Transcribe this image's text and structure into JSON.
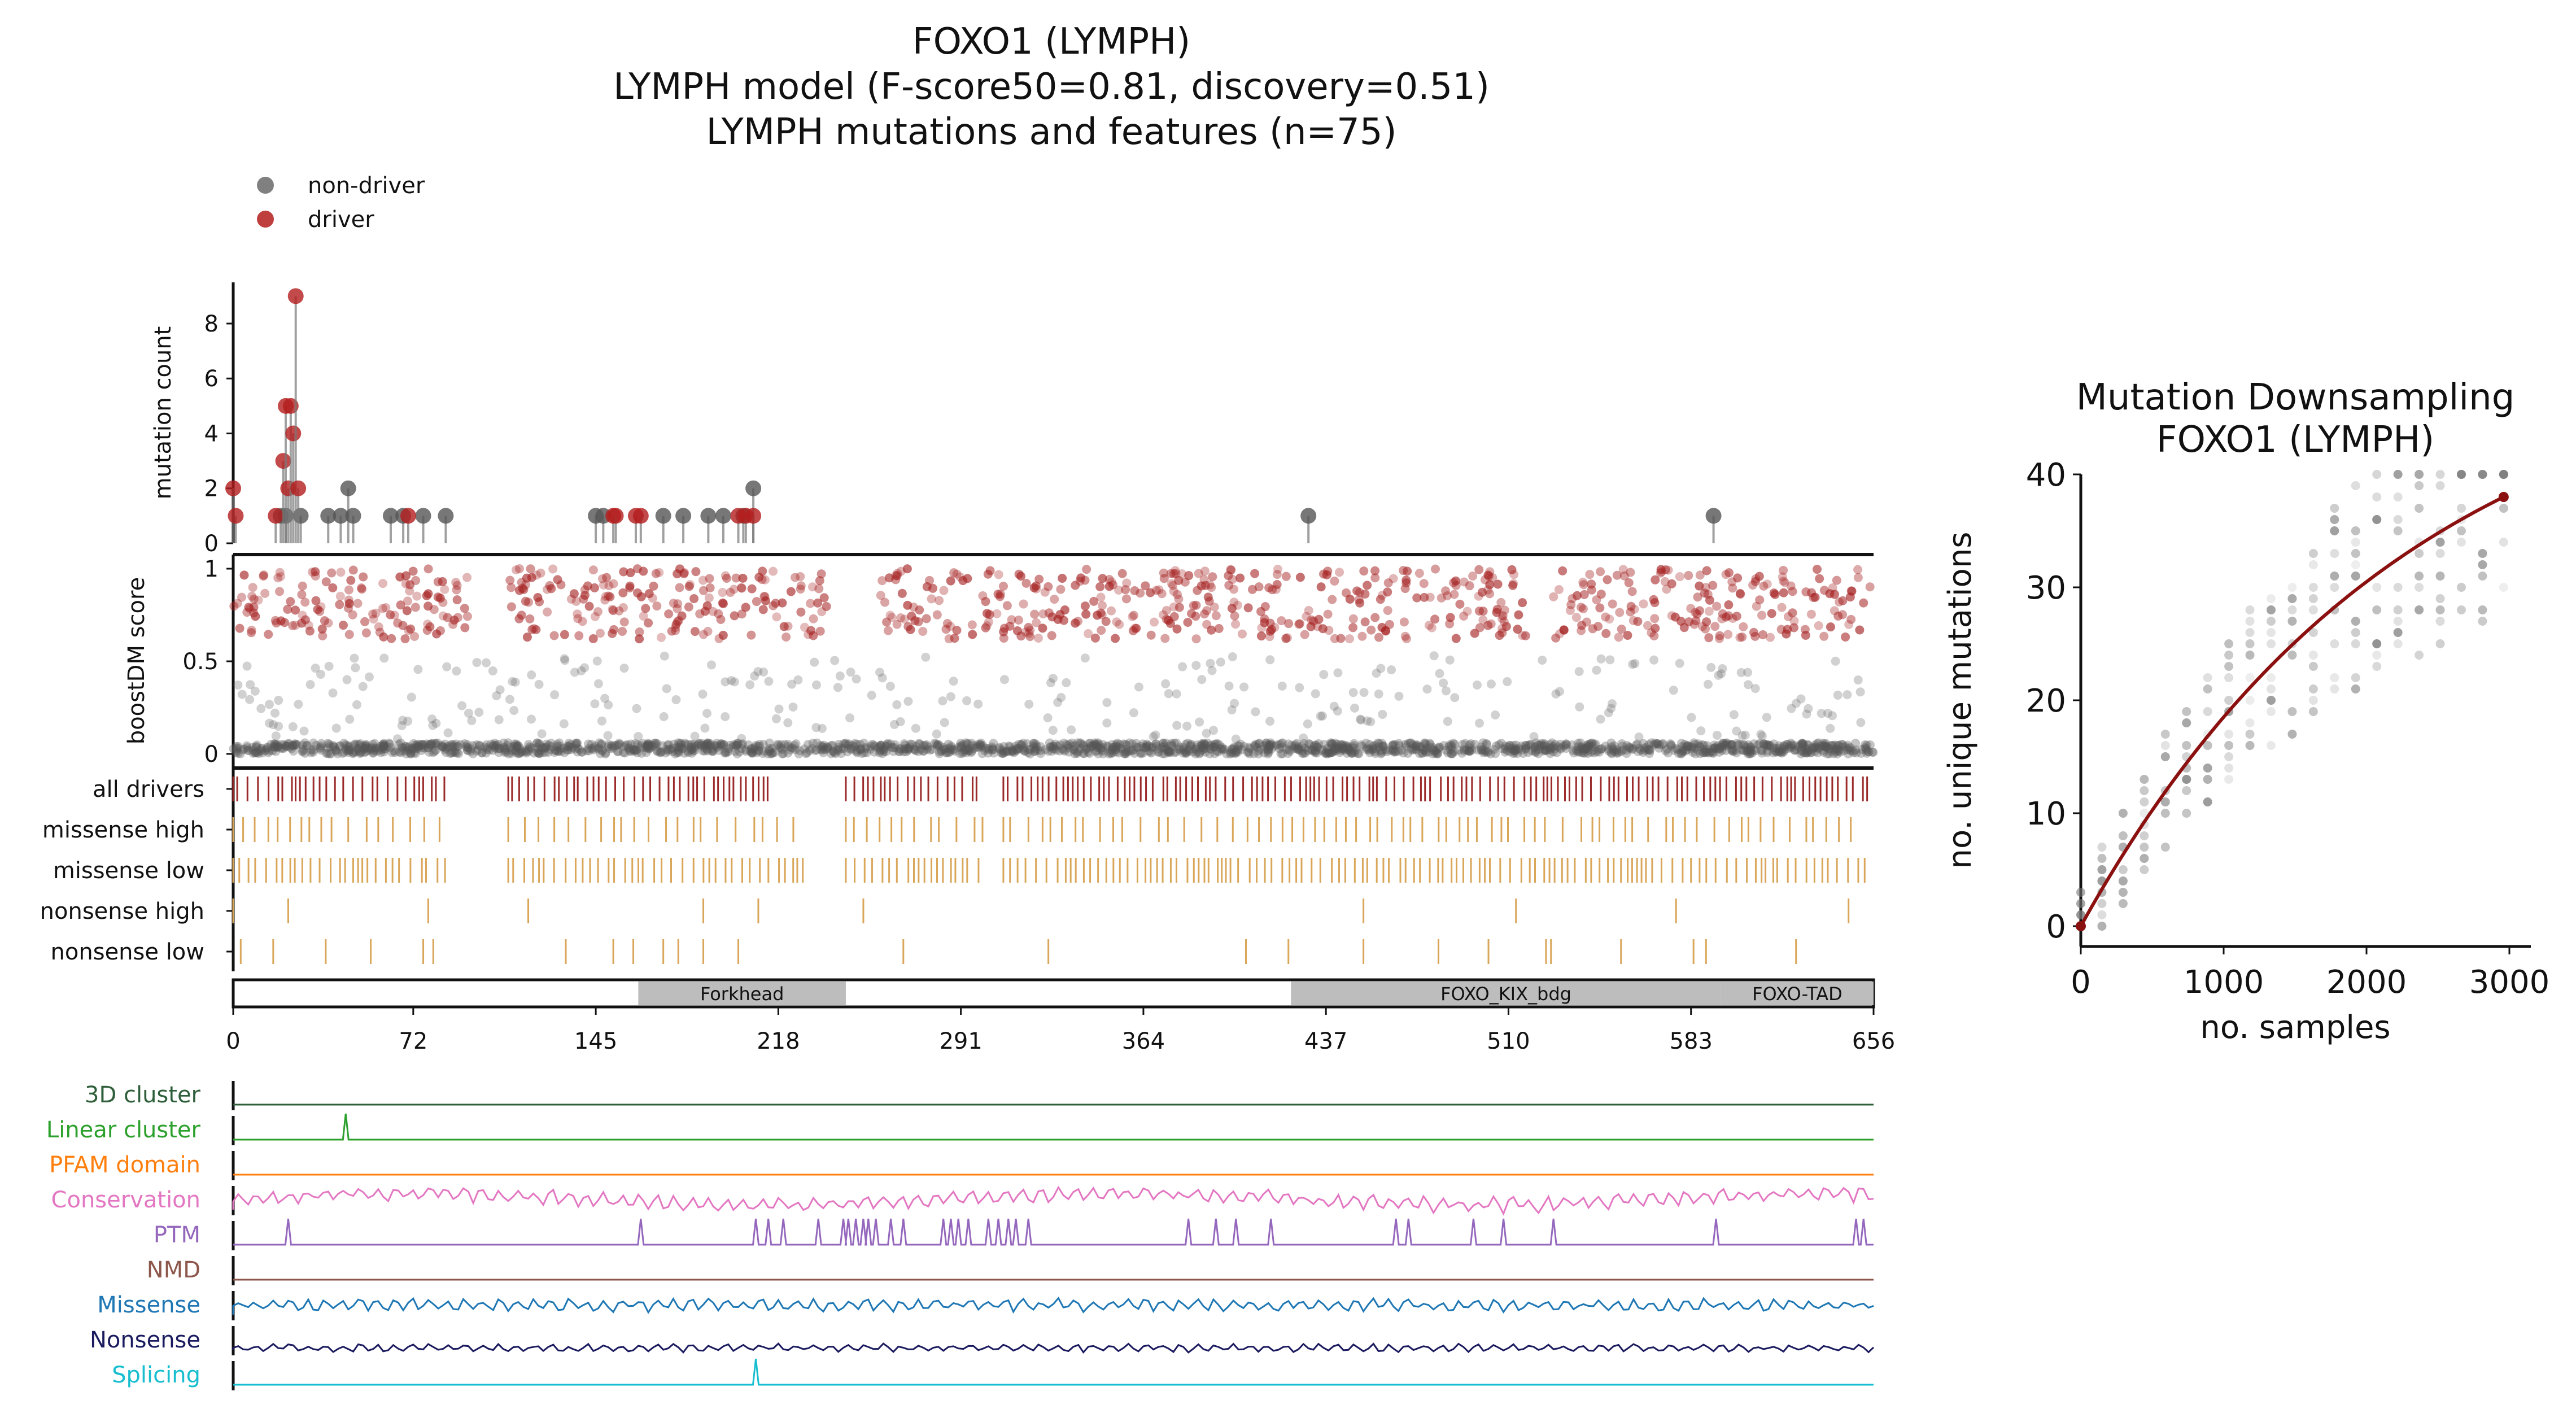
{
  "figure": {
    "title_lines": [
      "FOXO1 (LYMPH)",
      "LYMPH model (F-score50=0.81, discovery=0.51)",
      "LYMPH mutations and features (n=75)"
    ]
  },
  "chart_data": [
    {
      "type": "scatter",
      "panel": "needle",
      "ylabel": "mutation count",
      "ylim": [
        0,
        9.5
      ],
      "yticks": [
        0,
        2,
        4,
        6,
        8
      ],
      "legend": [
        {
          "name": "non-driver",
          "color": "#555555"
        },
        {
          "name": "driver",
          "color": "#b41d1d"
        }
      ],
      "series": [
        {
          "name": "non-driver",
          "points": [
            [
              19,
              1
            ],
            [
              21,
              1
            ],
            [
              27,
              1
            ],
            [
              38,
              1
            ],
            [
              43,
              1
            ],
            [
              46,
              2
            ],
            [
              48,
              1
            ],
            [
              63,
              1
            ],
            [
              68,
              1
            ],
            [
              76,
              1
            ],
            [
              85,
              1
            ],
            [
              145,
              1
            ],
            [
              148,
              1
            ],
            [
              172,
              1
            ],
            [
              180,
              1
            ],
            [
              190,
              1
            ],
            [
              196,
              1
            ],
            [
              204,
              1
            ],
            [
              208,
              2
            ],
            [
              430,
              1
            ],
            [
              592,
              1
            ]
          ]
        },
        {
          "name": "driver",
          "points": [
            [
              0,
              2
            ],
            [
              1,
              1
            ],
            [
              17,
              1
            ],
            [
              20,
              3
            ],
            [
              21,
              5
            ],
            [
              22,
              2
            ],
            [
              23,
              5
            ],
            [
              24,
              4
            ],
            [
              25,
              9
            ],
            [
              26,
              2
            ],
            [
              70,
              1
            ],
            [
              152,
              1
            ],
            [
              153,
              1
            ],
            [
              161,
              1
            ],
            [
              163,
              1
            ],
            [
              202,
              1
            ],
            [
              205,
              1
            ],
            [
              208,
              1
            ]
          ]
        }
      ]
    },
    {
      "type": "scatter",
      "panel": "boostdm",
      "ylabel": "boostDM score",
      "ylim": [
        0,
        1
      ],
      "yticks": [
        "0",
        "0.5",
        "1"
      ],
      "note_values": "dense per-position in-silico saturation scores (drivers near 0.7-1, non-drivers near 0-0.5)"
    },
    {
      "type": "table",
      "panel": "features",
      "rows": [
        {
          "label": "all drivers",
          "color": "#9b2a2a"
        },
        {
          "label": "missense high",
          "color": "#d9a65a"
        },
        {
          "label": "missense low",
          "color": "#d9a65a"
        },
        {
          "label": "nonsense high",
          "color": "#d9a65a"
        },
        {
          "label": "nonsense low",
          "color": "#d9a65a"
        }
      ],
      "nonsense_high_positions": [
        0,
        22,
        78,
        118,
        188,
        210,
        252,
        452,
        513,
        577,
        646
      ],
      "nonsense_low_positions": [
        3,
        16,
        37,
        55,
        76,
        80,
        133,
        152,
        160,
        172,
        178,
        188,
        202,
        268,
        326,
        405,
        422,
        452,
        482,
        502,
        525,
        527,
        555,
        584,
        589,
        625
      ]
    },
    {
      "type": "bar",
      "panel": "domains",
      "xticks": [
        0,
        72,
        145,
        218,
        291,
        364,
        437,
        510,
        583,
        656
      ],
      "xlim": [
        0,
        656
      ],
      "domains": [
        {
          "name": "Forkhead",
          "start": 162,
          "end": 245
        },
        {
          "name": "FOXO_KIX_bdg",
          "start": 423,
          "end": 595
        },
        {
          "name": "FOXO-TAD",
          "start": 595,
          "end": 656
        }
      ]
    },
    {
      "type": "line",
      "panel": "tracks",
      "tracks": [
        {
          "name": "3D cluster",
          "color": "#2f5f3a",
          "kind": "flat"
        },
        {
          "name": "Linear cluster",
          "color": "#2ca02c",
          "kind": "peaks",
          "peaks": [
            45
          ]
        },
        {
          "name": "PFAM domain",
          "color": "#ff7f0e",
          "kind": "flat"
        },
        {
          "name": "Conservation",
          "color": "#e377c2",
          "kind": "noise"
        },
        {
          "name": "PTM",
          "color": "#9467bd",
          "kind": "peaks",
          "peaks": [
            22,
            163,
            209,
            214,
            220,
            234,
            244,
            246,
            249,
            252,
            254,
            257,
            263,
            268,
            284,
            287,
            290,
            294,
            302,
            306,
            310,
            313,
            318,
            382,
            393,
            401,
            415,
            465,
            470,
            496,
            508,
            528,
            593,
            649,
            652
          ]
        },
        {
          "name": "NMD",
          "color": "#8c564b",
          "kind": "flat"
        },
        {
          "name": "Missense",
          "color": "#1f77b4",
          "kind": "noise"
        },
        {
          "name": "Nonsense",
          "color": "#1a1a5e",
          "kind": "noise"
        },
        {
          "name": "Splicing",
          "color": "#17becf",
          "kind": "peaks",
          "peaks": [
            209
          ]
        }
      ]
    },
    {
      "type": "scatter",
      "panel": "downsampling",
      "title_lines": [
        "Mutation Downsampling",
        "FOXO1 (LYMPH)"
      ],
      "xlabel": "no. samples",
      "ylabel": "no. unique mutations",
      "xlim": [
        0,
        3000
      ],
      "ylim": [
        0,
        40
      ],
      "xticks": [
        0,
        1000,
        2000,
        3000
      ],
      "yticks": [
        0,
        10,
        20,
        30,
        40
      ],
      "fit_line": {
        "color": "#8b1010",
        "x": [
          0,
          500,
          1000,
          1500,
          2000,
          2500,
          2960
        ],
        "y": [
          0,
          8.5,
          16,
          22.5,
          28,
          33.5,
          38
        ]
      }
    }
  ]
}
